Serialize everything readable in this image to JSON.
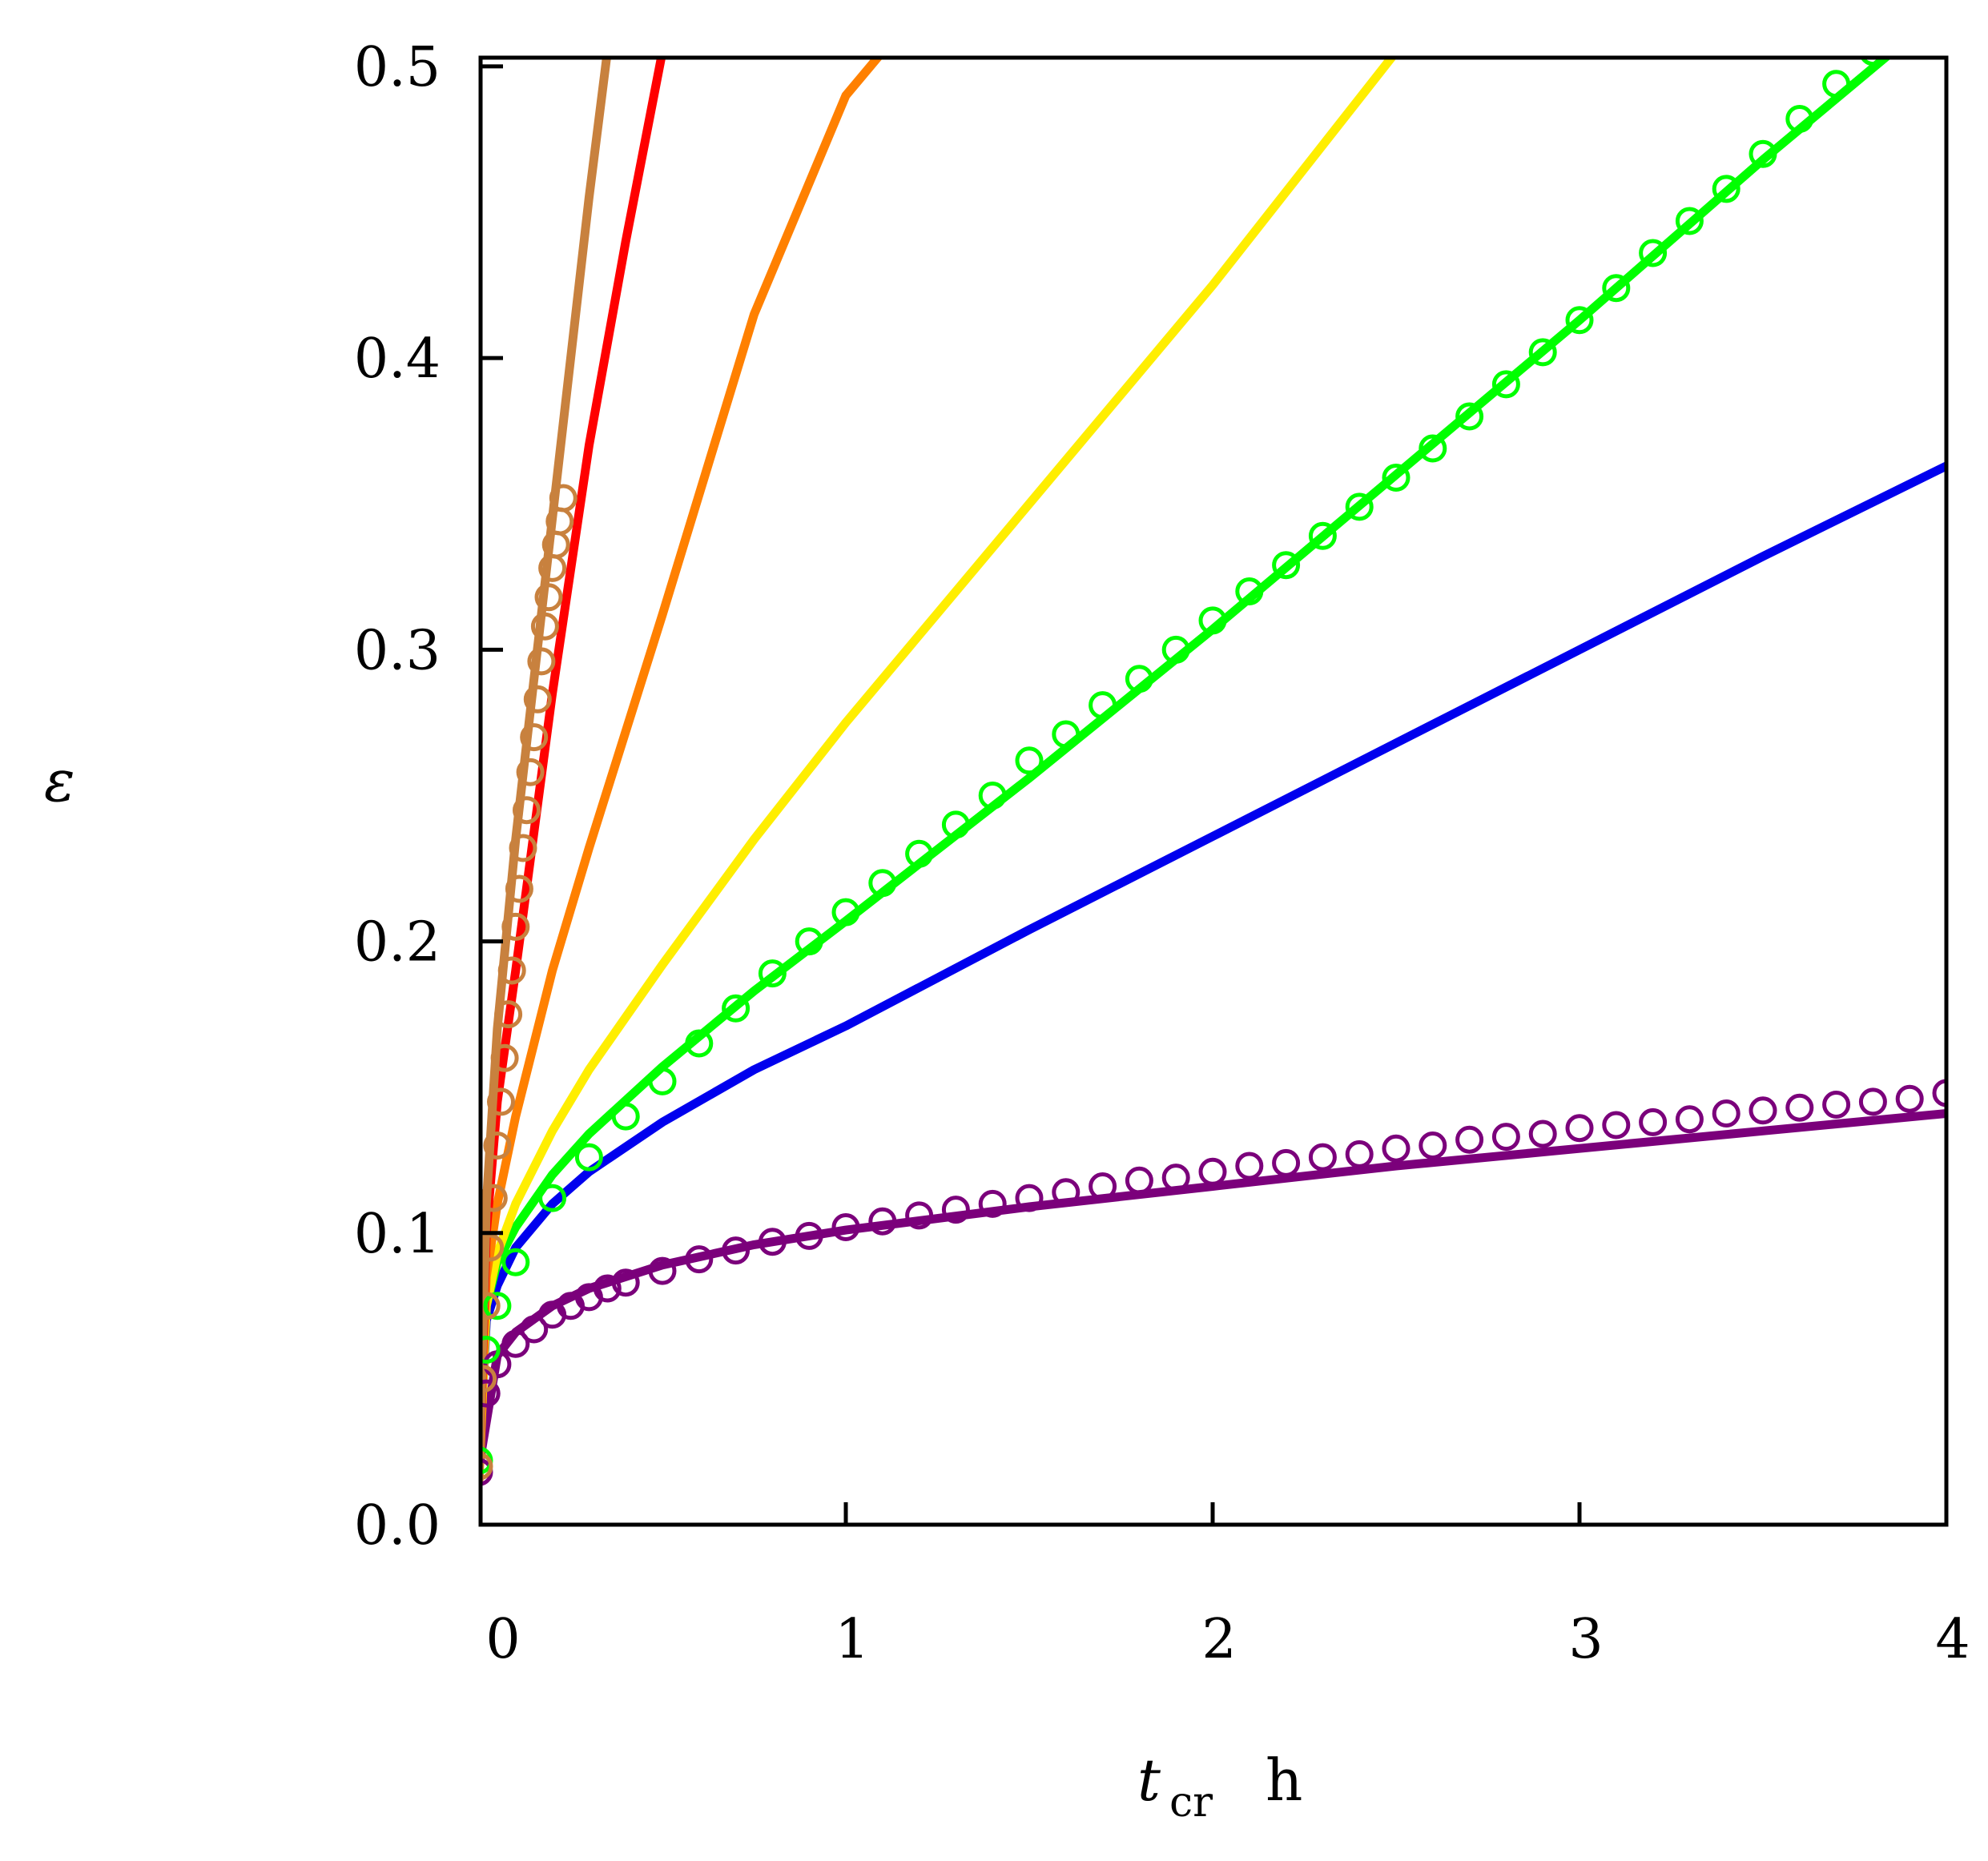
{
  "chart_data": {
    "type": "line",
    "title": "",
    "xlabel": {
      "symbol": "t",
      "subscript": "cr",
      "unit": "h"
    },
    "ylabel": "ε",
    "xlim": [
      0,
      4
    ],
    "ylim": [
      0,
      0.5
    ],
    "xticks": [
      0,
      1,
      2,
      3,
      4
    ],
    "xtick_labels": [
      "0",
      "1",
      "2",
      "3",
      "4"
    ],
    "yticks": [
      0.0,
      0.1,
      0.2,
      0.3,
      0.4,
      0.5
    ],
    "ytick_labels": [
      "0.0",
      "0.1",
      "0.2",
      "0.3",
      "0.4",
      "0.5"
    ],
    "grid": false,
    "legend": "none",
    "series": [
      {
        "color": "#7b007b",
        "style": "line",
        "x": [
          0.0,
          0.05,
          0.1,
          0.2,
          0.3,
          0.5,
          0.75,
          1.0,
          1.5,
          2.0,
          2.5,
          3.0,
          3.5,
          4.0
        ],
        "y": [
          0.02,
          0.058,
          0.066,
          0.075,
          0.081,
          0.089,
          0.096,
          0.101,
          0.109,
          0.116,
          0.123,
          0.129,
          0.135,
          0.141
        ]
      },
      {
        "color": "#7b007b",
        "style": "markers",
        "x": [
          0.0,
          0.02,
          0.05,
          0.1,
          0.15,
          0.2,
          0.25,
          0.3,
          0.35,
          0.4,
          0.5,
          0.6,
          0.7,
          0.8,
          0.9,
          1.0,
          1.1,
          1.2,
          1.3,
          1.4,
          1.5,
          1.6,
          1.7,
          1.8,
          1.9,
          2.0,
          2.1,
          2.2,
          2.3,
          2.4,
          2.5,
          2.6,
          2.7,
          2.8,
          2.9,
          3.0,
          3.1,
          3.2,
          3.3,
          3.4,
          3.5,
          3.6,
          3.7,
          3.8,
          3.9,
          4.0
        ],
        "y": [
          0.018,
          0.045,
          0.055,
          0.062,
          0.067,
          0.072,
          0.075,
          0.078,
          0.081,
          0.083,
          0.087,
          0.091,
          0.094,
          0.097,
          0.099,
          0.102,
          0.104,
          0.106,
          0.108,
          0.11,
          0.112,
          0.114,
          0.116,
          0.118,
          0.119,
          0.121,
          0.123,
          0.124,
          0.126,
          0.127,
          0.129,
          0.13,
          0.132,
          0.133,
          0.134,
          0.136,
          0.137,
          0.138,
          0.139,
          0.141,
          0.142,
          0.143,
          0.144,
          0.145,
          0.146,
          0.148
        ]
      },
      {
        "color": "#0000ee",
        "style": "line",
        "x": [
          0.0,
          0.02,
          0.05,
          0.1,
          0.2,
          0.3,
          0.5,
          0.75,
          1.0,
          1.5,
          2.0,
          2.5,
          3.0,
          3.5,
          4.0
        ],
        "y": [
          0.02,
          0.07,
          0.082,
          0.095,
          0.11,
          0.121,
          0.138,
          0.156,
          0.171,
          0.204,
          0.236,
          0.268,
          0.3,
          0.332,
          0.363
        ]
      },
      {
        "color": "#00ff00",
        "style": "line",
        "x": [
          0.0,
          0.02,
          0.05,
          0.1,
          0.2,
          0.3,
          0.5,
          0.75,
          1.0,
          1.5,
          2.0,
          2.5,
          3.0,
          3.5,
          3.9
        ],
        "y": [
          0.02,
          0.075,
          0.09,
          0.102,
          0.12,
          0.134,
          0.157,
          0.183,
          0.207,
          0.256,
          0.307,
          0.36,
          0.413,
          0.468,
          0.51
        ]
      },
      {
        "color": "#00ff00",
        "style": "markers",
        "x": [
          0.0,
          0.02,
          0.05,
          0.1,
          0.2,
          0.3,
          0.4,
          0.5,
          0.6,
          0.7,
          0.8,
          0.9,
          1.0,
          1.1,
          1.2,
          1.3,
          1.4,
          1.5,
          1.6,
          1.7,
          1.8,
          1.9,
          2.0,
          2.1,
          2.2,
          2.3,
          2.4,
          2.5,
          2.6,
          2.7,
          2.8,
          2.9,
          3.0,
          3.1,
          3.2,
          3.3,
          3.4,
          3.5,
          3.6,
          3.7,
          3.8,
          3.9
        ],
        "y": [
          0.022,
          0.06,
          0.075,
          0.09,
          0.112,
          0.126,
          0.14,
          0.152,
          0.165,
          0.177,
          0.189,
          0.2,
          0.21,
          0.22,
          0.23,
          0.24,
          0.25,
          0.262,
          0.271,
          0.281,
          0.29,
          0.3,
          0.31,
          0.32,
          0.329,
          0.339,
          0.349,
          0.359,
          0.369,
          0.38,
          0.391,
          0.402,
          0.413,
          0.424,
          0.436,
          0.447,
          0.458,
          0.47,
          0.482,
          0.494,
          0.505,
          0.51
        ]
      },
      {
        "color": "#ffee00",
        "style": "line",
        "x": [
          0.0,
          0.02,
          0.05,
          0.1,
          0.2,
          0.3,
          0.5,
          0.75,
          1.0,
          1.5,
          2.0,
          2.5
        ],
        "y": [
          0.015,
          0.075,
          0.093,
          0.11,
          0.135,
          0.156,
          0.192,
          0.235,
          0.275,
          0.35,
          0.425,
          0.505
        ]
      },
      {
        "color": "#ff8000",
        "style": "line",
        "x": [
          0.0,
          0.02,
          0.05,
          0.1,
          0.2,
          0.3,
          0.5,
          0.75,
          1.0,
          1.1
        ],
        "y": [
          0.015,
          0.085,
          0.11,
          0.14,
          0.19,
          0.232,
          0.312,
          0.415,
          0.49,
          0.505
        ]
      },
      {
        "color": "#ff0000",
        "style": "line",
        "x": [
          0.0,
          0.02,
          0.05,
          0.1,
          0.2,
          0.3,
          0.4,
          0.5
        ],
        "y": [
          0.015,
          0.1,
          0.145,
          0.19,
          0.285,
          0.37,
          0.44,
          0.505
        ]
      },
      {
        "color": "#c8813e",
        "style": "line",
        "x": [
          0.0,
          0.02,
          0.05,
          0.1,
          0.15,
          0.2,
          0.25,
          0.3,
          0.35
        ],
        "y": [
          0.015,
          0.11,
          0.17,
          0.235,
          0.29,
          0.345,
          0.4,
          0.455,
          0.505
        ]
      },
      {
        "color": "#c8813e",
        "style": "markers",
        "x": [
          0.0,
          0.01,
          0.02,
          0.03,
          0.04,
          0.05,
          0.06,
          0.07,
          0.08,
          0.09,
          0.1,
          0.11,
          0.12,
          0.13,
          0.14,
          0.15,
          0.16,
          0.17,
          0.18,
          0.19,
          0.2,
          0.21,
          0.22,
          0.23
        ],
        "y": [
          0.02,
          0.05,
          0.075,
          0.095,
          0.112,
          0.13,
          0.145,
          0.16,
          0.175,
          0.19,
          0.205,
          0.218,
          0.232,
          0.245,
          0.258,
          0.27,
          0.283,
          0.296,
          0.308,
          0.318,
          0.328,
          0.336,
          0.344,
          0.352
        ]
      }
    ]
  }
}
